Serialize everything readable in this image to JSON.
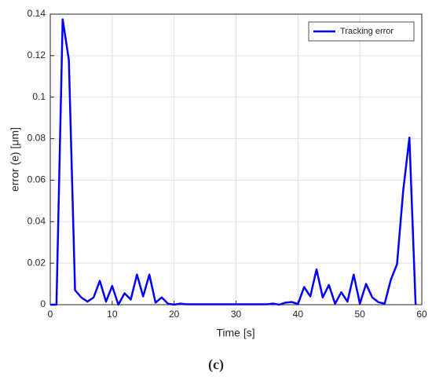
{
  "chart_data": {
    "type": "line",
    "x_label": "Time [s]",
    "y_label": "error (e) [μm]",
    "caption": "(c)",
    "x": [
      0,
      1,
      2,
      3,
      4,
      5,
      6,
      7,
      8,
      9,
      10,
      11,
      12,
      13,
      14,
      15,
      16,
      17,
      18,
      19,
      20,
      21,
      22,
      23,
      24,
      25,
      26,
      27,
      28,
      29,
      30,
      31,
      32,
      33,
      34,
      35,
      36,
      37,
      38,
      39,
      40,
      41,
      42,
      43,
      44,
      45,
      46,
      47,
      48,
      49,
      50,
      51,
      52,
      53,
      54,
      55,
      56,
      57,
      58,
      59
    ],
    "series": [
      {
        "name": "Tracking error",
        "color": "#0000ff",
        "values": [
          0,
          0,
          0.1375,
          0.118,
          0.007,
          0.0035,
          0.0015,
          0.0035,
          0.0115,
          0.0015,
          0.009,
          0,
          0.0055,
          0.0025,
          0.0145,
          0.004,
          0.0145,
          0.001,
          0.0035,
          0.0005,
          0,
          0.0005,
          0.0002,
          0.0002,
          0.0002,
          0.0002,
          0.0002,
          0.0002,
          0.0002,
          0.0002,
          0.0002,
          0.0002,
          0.0002,
          0.0002,
          0.0002,
          0.0002,
          0.0005,
          0,
          0.001,
          0.0013,
          0.0003,
          0.0085,
          0.004,
          0.017,
          0.0035,
          0.0095,
          0.0005,
          0.006,
          0.0015,
          0.0145,
          0.0005,
          0.01,
          0.0035,
          0.0012,
          0.0005,
          0.012,
          0.0195,
          0.055,
          0.0805,
          0
        ]
      }
    ],
    "xlim": [
      0,
      60
    ],
    "xticks": [
      0,
      10,
      20,
      30,
      40,
      50,
      60
    ],
    "ylim": [
      0,
      0.14
    ],
    "yticks": [
      0,
      0.02,
      0.04,
      0.06,
      0.08,
      0.1,
      0.12,
      0.14
    ],
    "grid": true,
    "legend": "upper-right"
  }
}
